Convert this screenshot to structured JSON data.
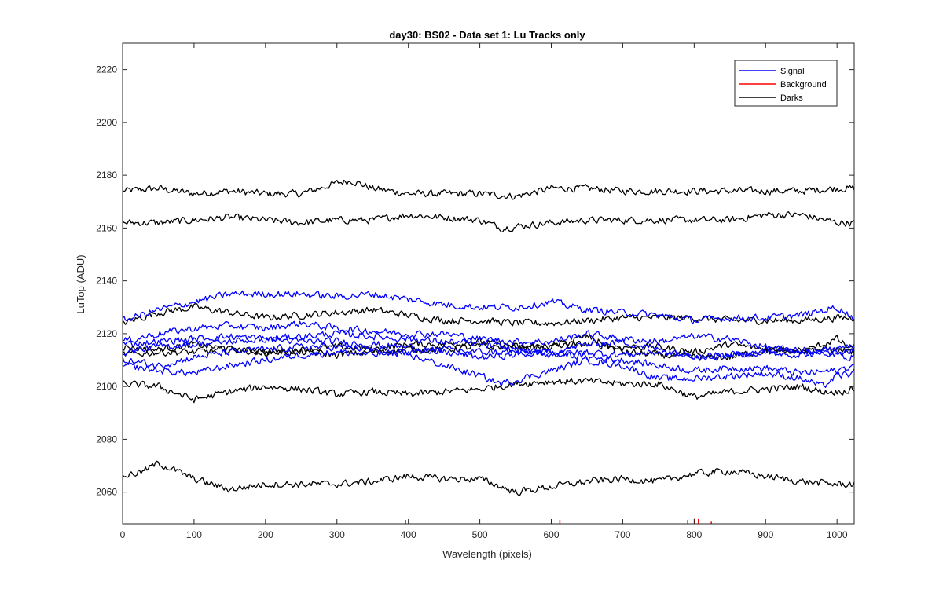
{
  "chart_data": {
    "type": "line",
    "title": "day30: BS02 - Data set 1: Lu Tracks only",
    "xlabel": "Wavelength (pixels)",
    "ylabel": "LuTop (ADU)",
    "xlim": [
      0,
      1024
    ],
    "ylim": [
      2048,
      2230
    ],
    "xticks": [
      0,
      100,
      200,
      300,
      400,
      500,
      600,
      700,
      800,
      900,
      1000
    ],
    "yticks": [
      2060,
      2080,
      2100,
      2120,
      2140,
      2160,
      2180,
      2200,
      2220
    ],
    "grid": false,
    "legend_position": "top-right",
    "legend": [
      {
        "label": "Signal",
        "color": "#0000ff"
      },
      {
        "label": "Background",
        "color": "#ff0000"
      },
      {
        "label": "Darks",
        "color": "#000000"
      }
    ],
    "series": [
      {
        "group": "Darks",
        "color": "#000000",
        "x": [
          0,
          50,
          100,
          150,
          200,
          250,
          300,
          320,
          350,
          400,
          450,
          500,
          550,
          600,
          650,
          700,
          750,
          800,
          850,
          900,
          950,
          1000,
          1024
        ],
        "y": [
          2174,
          2175,
          2173,
          2174,
          2173,
          2173,
          2177,
          2178,
          2175,
          2173,
          2173,
          2173,
          2172,
          2175,
          2175,
          2174,
          2174,
          2174,
          2174,
          2174,
          2174,
          2175,
          2175
        ]
      },
      {
        "group": "Darks",
        "color": "#000000",
        "x": [
          0,
          50,
          100,
          150,
          200,
          250,
          300,
          350,
          400,
          450,
          500,
          530,
          600,
          650,
          700,
          750,
          800,
          850,
          900,
          950,
          1000,
          1024
        ],
        "y": [
          2162,
          2162,
          2163,
          2164,
          2163,
          2162,
          2163,
          2163,
          2165,
          2164,
          2163,
          2160,
          2162,
          2163,
          2163,
          2163,
          2163,
          2163,
          2165,
          2165,
          2162,
          2162
        ]
      },
      {
        "group": "Darks",
        "color": "#000000",
        "x": [
          0,
          50,
          100,
          150,
          200,
          250,
          300,
          350,
          400,
          450,
          500,
          550,
          600,
          650,
          700,
          750,
          800,
          850,
          900,
          950,
          1000,
          1024
        ],
        "y": [
          2124,
          2128,
          2130,
          2128,
          2126,
          2127,
          2128,
          2129,
          2127,
          2125,
          2125,
          2124,
          2124,
          2125,
          2126,
          2126,
          2126,
          2125,
          2125,
          2125,
          2126,
          2126
        ]
      },
      {
        "group": "Darks",
        "color": "#000000",
        "x": [
          0,
          50,
          100,
          150,
          200,
          250,
          300,
          350,
          400,
          450,
          500,
          550,
          600,
          650,
          700,
          750,
          800,
          850,
          900,
          950,
          1000,
          1024
        ],
        "y": [
          2115,
          2114,
          2116,
          2114,
          2113,
          2114,
          2115,
          2114,
          2116,
          2116,
          2117,
          2115,
          2115,
          2116,
          2115,
          2115,
          2113,
          2116,
          2114,
          2114,
          2114,
          2113
        ]
      },
      {
        "group": "Darks",
        "color": "#000000",
        "x": [
          0,
          50,
          100,
          150,
          200,
          250,
          300,
          350,
          400,
          450,
          500,
          550,
          600,
          650,
          700,
          750,
          800,
          850,
          900,
          950,
          1000,
          1024
        ],
        "y": [
          2112,
          2113,
          2113,
          2114,
          2113,
          2113,
          2112,
          2113,
          2114,
          2114,
          2115,
          2115,
          2115,
          2119,
          2113,
          2112,
          2111,
          2111,
          2114,
          2113,
          2118,
          2113
        ]
      },
      {
        "group": "Darks",
        "color": "#000000",
        "x": [
          0,
          50,
          100,
          150,
          200,
          250,
          300,
          350,
          400,
          450,
          500,
          550,
          600,
          650,
          700,
          750,
          800,
          850,
          900,
          950,
          980,
          1000,
          1024
        ],
        "y": [
          2101,
          2100,
          2095,
          2098,
          2100,
          2099,
          2097,
          2098,
          2097,
          2098,
          2099,
          2101,
          2102,
          2102,
          2101,
          2101,
          2096,
          2098,
          2099,
          2100,
          2098,
          2098,
          2099
        ]
      },
      {
        "group": "Darks",
        "color": "#000000",
        "x": [
          0,
          30,
          50,
          100,
          150,
          200,
          250,
          300,
          350,
          400,
          450,
          500,
          550,
          600,
          650,
          700,
          750,
          800,
          850,
          900,
          950,
          1000,
          1024
        ],
        "y": [
          2066,
          2068,
          2071,
          2065,
          2061,
          2063,
          2063,
          2063,
          2064,
          2066,
          2065,
          2065,
          2060,
          2062,
          2064,
          2065,
          2064,
          2067,
          2068,
          2066,
          2064,
          2063,
          2063
        ]
      },
      {
        "group": "Signal",
        "color": "#0000ff",
        "x": [
          0,
          50,
          100,
          150,
          200,
          250,
          300,
          350,
          400,
          450,
          500,
          550,
          600,
          650,
          700,
          750,
          800,
          850,
          900,
          950,
          1000,
          1024
        ],
        "y": [
          2125,
          2129,
          2132,
          2135,
          2135,
          2135,
          2134,
          2135,
          2133,
          2131,
          2130,
          2130,
          2132,
          2129,
          2128,
          2127,
          2125,
          2126,
          2126,
          2127,
          2130,
          2126
        ]
      },
      {
        "group": "Signal",
        "color": "#0000ff",
        "x": [
          0,
          50,
          100,
          150,
          200,
          250,
          300,
          350,
          400,
          450,
          500,
          550,
          600,
          650,
          700,
          750,
          800,
          850,
          900,
          950,
          1000,
          1024
        ],
        "y": [
          2117,
          2120,
          2122,
          2123,
          2122,
          2124,
          2122,
          2121,
          2120,
          2120,
          2118,
          2117,
          2117,
          2120,
          2118,
          2117,
          2119,
          2118,
          2115,
          2113,
          2114,
          2116
        ]
      },
      {
        "group": "Signal",
        "color": "#0000ff",
        "x": [
          0,
          50,
          100,
          150,
          200,
          250,
          300,
          350,
          400,
          450,
          500,
          550,
          600,
          650,
          700,
          750,
          800,
          850,
          900,
          950,
          1000,
          1024
        ],
        "y": [
          2116,
          2117,
          2118,
          2119,
          2118,
          2119,
          2120,
          2119,
          2118,
          2117,
          2116,
          2114,
          2112,
          2113,
          2112,
          2113,
          2111,
          2112,
          2113,
          2114,
          2112,
          2111
        ]
      },
      {
        "group": "Signal",
        "color": "#0000ff",
        "x": [
          0,
          50,
          100,
          150,
          200,
          250,
          300,
          350,
          400,
          450,
          500,
          550,
          600,
          650,
          700,
          750,
          800,
          850,
          900,
          950,
          1000,
          1024
        ],
        "y": [
          2113,
          2115,
          2116,
          2117,
          2118,
          2117,
          2117,
          2116,
          2115,
          2113,
          2111,
          2112,
          2113,
          2111,
          2110,
          2108,
          2106,
          2107,
          2107,
          2105,
          2106,
          2108
        ]
      },
      {
        "group": "Signal",
        "color": "#0000ff",
        "x": [
          0,
          50,
          100,
          150,
          200,
          250,
          300,
          350,
          400,
          450,
          500,
          530,
          600,
          650,
          700,
          750,
          800,
          850,
          900,
          950,
          980,
          1000,
          1024
        ],
        "y": [
          2110,
          2108,
          2111,
          2113,
          2114,
          2115,
          2115,
          2114,
          2112,
          2108,
          2104,
          2101,
          2106,
          2110,
          2108,
          2103,
          2103,
          2104,
          2105,
          2103,
          2100,
          2104,
          2105
        ]
      },
      {
        "group": "Signal",
        "color": "#0000ff",
        "x": [
          0,
          50,
          100,
          150,
          200,
          250,
          300,
          350,
          400,
          450,
          500,
          550,
          600,
          650,
          700,
          750,
          800,
          850,
          900,
          950,
          1000,
          1024
        ],
        "y": [
          2108,
          2106,
          2105,
          2108,
          2110,
          2112,
          2113,
          2112,
          2113,
          2114,
          2113,
          2113,
          2113,
          2116,
          2117,
          2114,
          2112,
          2112,
          2113,
          2112,
          2113,
          2114
        ]
      },
      {
        "group": "Background",
        "color": "#ff0000",
        "type": "spikes",
        "x": [
          396,
          612,
          791,
          801,
          806,
          824
        ],
        "y": [
          2049.5,
          2049.5,
          2049.5,
          2050,
          2049.8,
          2048.8
        ]
      }
    ]
  }
}
